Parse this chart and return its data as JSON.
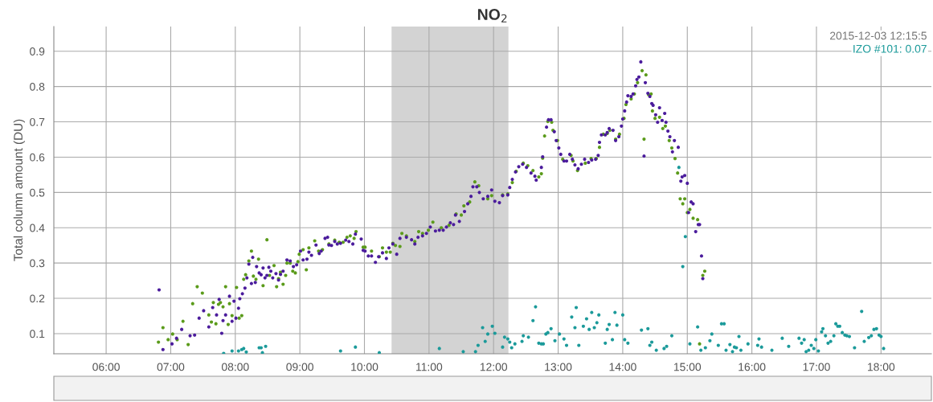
{
  "chart_data": {
    "type": "scatter",
    "title": "NO$_{2}$",
    "ylabel": "Total column amount (DU)",
    "annotations": [
      "2015-12-03 12:15:5",
      "IZO #101: 0.07"
    ],
    "xlim": [
      5.19,
      18.78
    ],
    "ylim": [
      0.043,
      0.97
    ],
    "xticks": [
      {
        "value": 6,
        "label": "06:00"
      },
      {
        "value": 7,
        "label": "07:00"
      },
      {
        "value": 8,
        "label": "08:00"
      },
      {
        "value": 9,
        "label": "09:00"
      },
      {
        "value": 10,
        "label": "10:00"
      },
      {
        "value": 11,
        "label": "11:00"
      },
      {
        "value": 12,
        "label": "12:00"
      },
      {
        "value": 13,
        "label": "13:00"
      },
      {
        "value": 14,
        "label": "14:00"
      },
      {
        "value": 15,
        "label": "15:00"
      },
      {
        "value": 16,
        "label": "16:00"
      },
      {
        "value": 17,
        "label": "17:00"
      },
      {
        "value": 18,
        "label": "18:00"
      }
    ],
    "yticks": [
      0.1,
      0.2,
      0.3,
      0.4,
      0.5,
      0.6,
      0.7,
      0.8,
      0.9
    ],
    "grid": true,
    "marker": "circle",
    "bands": [
      {
        "axis": "x",
        "from": 10.42,
        "to": 12.23,
        "color": "#d3d3d3"
      }
    ],
    "series": [
      {
        "color": "#1b9a9a",
        "x": [
          7.82,
          7.95,
          8.05,
          8.1,
          8.13,
          8.17,
          8.37,
          8.4,
          8.47,
          8.42,
          9.63,
          9.86,
          10.23,
          11.16,
          11.53,
          11.72,
          11.76,
          11.83,
          11.87,
          11.91,
          11.98,
          12.02,
          12.14,
          12.17,
          12.22,
          12.25,
          12.28,
          12.33,
          12.44,
          12.46,
          12.54,
          12.61,
          12.65,
          12.7,
          12.74,
          12.77,
          12.81,
          12.84,
          12.89,
          12.95,
          13.02,
          13.09,
          13.13,
          13.21,
          13.26,
          13.28,
          13.32,
          13.39,
          13.44,
          13.48,
          13.52,
          13.56,
          13.6,
          13.63,
          13.73,
          13.76,
          13.79,
          13.84,
          13.88,
          13.91,
          14.0,
          14.03,
          14.08,
          14.29,
          14.39,
          14.42,
          14.45,
          14.52,
          14.64,
          14.68,
          14.76,
          14.87,
          14.93,
          14.97,
          15.04,
          15.16,
          15.21,
          15.28,
          15.35,
          15.38,
          15.48,
          15.53,
          15.57,
          15.6,
          15.66,
          15.7,
          15.73,
          15.76,
          15.8,
          15.83,
          15.94,
          16.09,
          16.11,
          16.15,
          16.31,
          16.47,
          16.57,
          16.73,
          16.77,
          16.81,
          16.84,
          16.88,
          16.92,
          16.96,
          16.99,
          17.03,
          17.08,
          17.1,
          17.14,
          17.18,
          17.22,
          17.27,
          17.3,
          17.33,
          17.36,
          17.4,
          17.44,
          17.47,
          17.51,
          17.59,
          17.7,
          17.74,
          17.81,
          17.85,
          17.89,
          17.93,
          17.97,
          18.0,
          18.04
        ],
        "values": [
          0.044,
          0.051,
          0.051,
          0.055,
          0.058,
          0.048,
          0.06,
          0.06,
          0.064,
          0.046,
          0.051,
          0.062,
          0.046,
          0.058,
          0.049,
          0.049,
          0.067,
          0.117,
          0.078,
          0.099,
          0.121,
          0.101,
          0.062,
          0.09,
          0.085,
          0.076,
          0.06,
          0.071,
          0.078,
          0.094,
          0.09,
          0.137,
          0.176,
          0.073,
          0.071,
          0.071,
          0.099,
          0.103,
          0.114,
          0.08,
          0.099,
          0.085,
          0.067,
          0.147,
          0.117,
          0.174,
          0.067,
          0.121,
          0.142,
          0.112,
          0.16,
          0.117,
          0.131,
          0.153,
          0.073,
          0.112,
          0.126,
          0.083,
          0.16,
          0.124,
          0.153,
          0.083,
          0.073,
          0.11,
          0.114,
          0.067,
          0.076,
          0.053,
          0.058,
          0.064,
          0.094,
          0.571,
          0.29,
          0.375,
          0.071,
          0.119,
          0.053,
          0.06,
          0.08,
          0.099,
          0.067,
          0.128,
          0.128,
          0.053,
          0.069,
          0.049,
          0.062,
          0.06,
          0.092,
          0.053,
          0.071,
          0.067,
          0.085,
          0.062,
          0.053,
          0.087,
          0.064,
          0.087,
          0.073,
          0.083,
          0.049,
          0.053,
          0.067,
          0.058,
          0.083,
          0.051,
          0.105,
          0.114,
          0.094,
          0.073,
          0.078,
          0.094,
          0.128,
          0.121,
          0.121,
          0.103,
          0.096,
          0.094,
          0.092,
          0.06,
          0.163,
          0.078,
          0.089,
          0.094,
          0.112,
          0.114,
          0.096,
          0.092,
          0.058
        ]
      },
      {
        "color": "#5b9b1b",
        "x": [
          6.81,
          6.88,
          6.96,
          7.03,
          7.1,
          7.19,
          7.27,
          7.34,
          7.41,
          7.49,
          7.59,
          7.63,
          7.66,
          7.7,
          7.74,
          7.77,
          7.81,
          7.85,
          7.89,
          7.91,
          7.95,
          8.02,
          8.06,
          8.1,
          8.13,
          8.16,
          8.21,
          8.25,
          8.28,
          8.32,
          8.36,
          8.43,
          8.49,
          8.53,
          8.6,
          8.64,
          8.67,
          8.7,
          8.74,
          8.78,
          8.8,
          8.85,
          8.89,
          8.93,
          8.97,
          8.99,
          9.05,
          9.1,
          9.14,
          9.23,
          9.29,
          9.35,
          9.45,
          9.54,
          9.61,
          9.67,
          9.73,
          9.78,
          9.84,
          9.87,
          9.98,
          10.01,
          10.11,
          10.23,
          10.28,
          10.34,
          10.4,
          10.44,
          10.48,
          10.55,
          10.58,
          10.65,
          10.78,
          10.84,
          10.9,
          10.99,
          11.06,
          11.19,
          11.31,
          11.42,
          11.5,
          11.54,
          11.63,
          11.71,
          11.77,
          11.91,
          11.97,
          12.14,
          12.22,
          12.29,
          12.35,
          12.46,
          12.53,
          12.61,
          12.7,
          12.74,
          12.76,
          12.79,
          12.84,
          12.9,
          12.92,
          12.99,
          13.07,
          13.2,
          13.23,
          13.3,
          13.42,
          13.51,
          13.59,
          13.64,
          13.7,
          13.76,
          13.8,
          13.89,
          13.95,
          14.02,
          14.05,
          14.13,
          14.18,
          14.23,
          14.3,
          14.33,
          14.36,
          14.4,
          14.44,
          14.46,
          14.5,
          14.57,
          14.62,
          14.66,
          14.72,
          14.76,
          14.81,
          14.85,
          14.89,
          14.93,
          14.96,
          15.0,
          15.04,
          15.09,
          15.16,
          15.19,
          15.24,
          15.27
        ],
        "values": [
          0.076,
          0.117,
          0.083,
          0.099,
          0.083,
          0.135,
          0.069,
          0.185,
          0.233,
          0.215,
          0.153,
          0.133,
          0.188,
          0.128,
          0.183,
          0.188,
          0.176,
          0.233,
          0.126,
          0.185,
          0.151,
          0.231,
          0.144,
          0.151,
          0.254,
          0.267,
          0.306,
          0.334,
          0.263,
          0.254,
          0.311,
          0.236,
          0.366,
          0.265,
          0.293,
          0.233,
          0.256,
          0.274,
          0.24,
          0.265,
          0.3,
          0.3,
          0.277,
          0.272,
          0.304,
          0.325,
          0.338,
          0.281,
          0.343,
          0.363,
          0.334,
          0.338,
          0.354,
          0.365,
          0.359,
          0.359,
          0.373,
          0.377,
          0.37,
          0.389,
          0.345,
          0.345,
          0.334,
          0.318,
          0.343,
          0.331,
          0.331,
          0.356,
          0.35,
          0.347,
          0.384,
          0.377,
          0.361,
          0.389,
          0.384,
          0.393,
          0.416,
          0.4,
          0.407,
          0.439,
          0.436,
          0.462,
          0.473,
          0.53,
          0.519,
          0.482,
          0.491,
          0.493,
          0.496,
          0.528,
          0.56,
          0.583,
          0.576,
          0.562,
          0.544,
          0.553,
          0.597,
          0.66,
          0.701,
          0.699,
          0.676,
          0.647,
          0.594,
          0.605,
          0.589,
          0.562,
          0.583,
          0.596,
          0.596,
          0.628,
          0.665,
          0.667,
          0.676,
          0.651,
          0.665,
          0.71,
          0.749,
          0.765,
          0.779,
          0.811,
          0.845,
          0.651,
          0.833,
          0.777,
          0.779,
          0.731,
          0.71,
          0.713,
          0.681,
          0.688,
          0.647,
          0.626,
          0.596,
          0.555,
          0.482,
          0.468,
          0.482,
          0.443,
          0.452,
          0.427,
          0.423,
          0.071,
          0.265,
          0.277
        ]
      },
      {
        "color": "#4b1c9c",
        "x": [
          6.82,
          6.88,
          7.02,
          7.09,
          7.17,
          7.3,
          7.37,
          7.44,
          7.51,
          7.59,
          7.65,
          7.71,
          7.75,
          7.79,
          7.81,
          7.85,
          7.91,
          7.95,
          7.98,
          8.01,
          8.05,
          8.07,
          8.11,
          8.15,
          8.18,
          8.21,
          8.25,
          8.27,
          8.31,
          8.33,
          8.37,
          8.4,
          8.43,
          8.46,
          8.49,
          8.52,
          8.55,
          8.58,
          8.63,
          8.67,
          8.7,
          8.74,
          8.8,
          8.85,
          8.9,
          8.95,
          9.01,
          9.05,
          9.11,
          9.14,
          9.18,
          9.25,
          9.3,
          9.33,
          9.39,
          9.43,
          9.45,
          9.49,
          9.54,
          9.58,
          9.63,
          9.71,
          9.76,
          9.82,
          9.86,
          9.95,
          9.98,
          10.01,
          10.06,
          10.11,
          10.17,
          10.22,
          10.28,
          10.34,
          10.38,
          10.44,
          10.5,
          10.55,
          10.65,
          10.73,
          10.78,
          10.83,
          10.9,
          10.96,
          11.02,
          11.1,
          11.16,
          11.22,
          11.27,
          11.33,
          11.38,
          11.41,
          11.47,
          11.55,
          11.6,
          11.65,
          11.68,
          11.74,
          11.78,
          11.84,
          11.91,
          11.97,
          12.02,
          12.09,
          12.14,
          12.22,
          12.25,
          12.29,
          12.34,
          12.39,
          12.45,
          12.51,
          12.58,
          12.64,
          12.66,
          12.74,
          12.76,
          12.82,
          12.85,
          12.89,
          12.94,
          12.97,
          13.01,
          13.04,
          13.09,
          13.13,
          13.18,
          13.22,
          13.26,
          13.31,
          13.36,
          13.41,
          13.47,
          13.52,
          13.58,
          13.62,
          13.64,
          13.67,
          13.73,
          13.76,
          13.79,
          13.85,
          13.89,
          13.94,
          13.98,
          14.0,
          14.03,
          14.06,
          14.08,
          14.13,
          14.16,
          14.2,
          14.22,
          14.25,
          14.28,
          14.33,
          14.35,
          14.39,
          14.42,
          14.45,
          14.47,
          14.51,
          14.54,
          14.57,
          14.61,
          14.65,
          14.67,
          14.7,
          14.73,
          14.77,
          14.8,
          14.86,
          14.9,
          14.92,
          14.96,
          15.0,
          15.02,
          15.06,
          15.09,
          15.13,
          15.17,
          15.19,
          15.22,
          15.24
        ],
        "values": [
          0.224,
          0.055,
          0.071,
          0.087,
          0.112,
          0.094,
          0.096,
          0.144,
          0.165,
          0.119,
          0.174,
          0.153,
          0.197,
          0.101,
          0.137,
          0.153,
          0.206,
          0.135,
          0.192,
          0.144,
          0.172,
          0.199,
          0.213,
          0.229,
          0.258,
          0.297,
          0.242,
          0.316,
          0.245,
          0.29,
          0.272,
          0.267,
          0.286,
          0.258,
          0.265,
          0.288,
          0.277,
          0.258,
          0.27,
          0.252,
          0.268,
          0.277,
          0.309,
          0.306,
          0.29,
          0.295,
          0.334,
          0.309,
          0.311,
          0.331,
          0.322,
          0.351,
          0.327,
          0.334,
          0.37,
          0.373,
          0.351,
          0.35,
          0.361,
          0.354,
          0.356,
          0.365,
          0.361,
          0.354,
          0.382,
          0.368,
          0.336,
          0.334,
          0.32,
          0.32,
          0.302,
          0.318,
          0.329,
          0.313,
          0.343,
          0.354,
          0.325,
          0.37,
          0.373,
          0.366,
          0.354,
          0.373,
          0.377,
          0.384,
          0.402,
          0.391,
          0.393,
          0.393,
          0.402,
          0.414,
          0.409,
          0.436,
          0.418,
          0.446,
          0.468,
          0.489,
          0.516,
          0.516,
          0.5,
          0.482,
          0.489,
          0.507,
          0.475,
          0.471,
          0.491,
          0.493,
          0.514,
          0.537,
          0.558,
          0.573,
          0.58,
          0.571,
          0.555,
          0.546,
          0.535,
          0.571,
          0.601,
          0.685,
          0.706,
          0.706,
          0.672,
          0.647,
          0.626,
          0.608,
          0.589,
          0.589,
          0.608,
          0.594,
          0.578,
          0.567,
          0.58,
          0.594,
          0.585,
          0.592,
          0.594,
          0.605,
          0.642,
          0.663,
          0.663,
          0.67,
          0.681,
          0.676,
          0.647,
          0.658,
          0.688,
          0.708,
          0.731,
          0.756,
          0.774,
          0.772,
          0.779,
          0.802,
          0.82,
          0.827,
          0.87,
          0.603,
          0.811,
          0.781,
          0.772,
          0.752,
          0.747,
          0.72,
          0.699,
          0.74,
          0.704,
          0.724,
          0.699,
          0.674,
          0.658,
          0.615,
          0.647,
          0.628,
          0.532,
          0.544,
          0.548,
          0.526,
          0.443,
          0.473,
          0.468,
          0.389,
          0.409,
          0.409,
          0.32,
          0.256
        ]
      }
    ]
  }
}
